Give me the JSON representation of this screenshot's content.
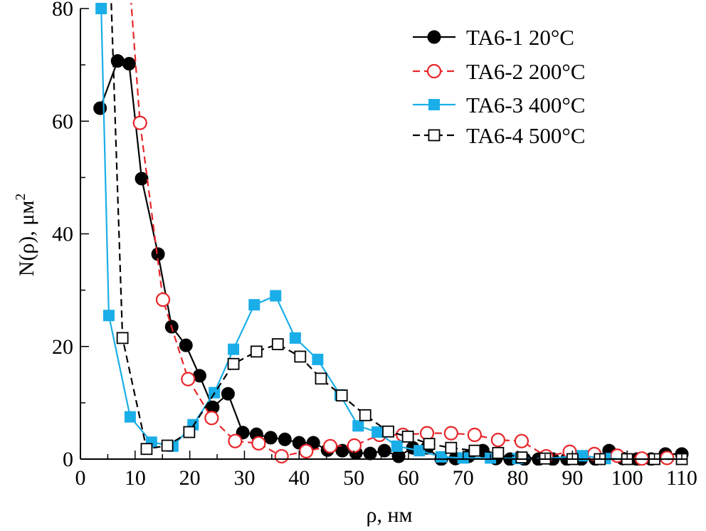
{
  "chart_data": {
    "type": "line",
    "title": "",
    "xlabel": "ρ, нм",
    "ylabel": "N(ρ), μм",
    "ylabel_sup": "2",
    "xlim": [
      0,
      110
    ],
    "ylim": [
      0,
      80
    ],
    "xticks": [
      0,
      10,
      20,
      30,
      40,
      50,
      60,
      70,
      80,
      90,
      100,
      110
    ],
    "yticks": [
      0,
      20,
      40,
      60,
      80
    ],
    "grid": false,
    "legend_position": "top-right",
    "series": [
      {
        "name": "TA6-1 20°C",
        "color": "#000000",
        "marker": "filled-circle",
        "dash": "solid",
        "x": [
          3.6,
          6.8,
          8.9,
          11.2,
          14.2,
          16.7,
          19.3,
          21.8,
          24.2,
          27.0,
          29.7,
          32.2,
          34.8,
          37.4,
          40.0,
          42.6,
          45.2,
          47.9,
          50.4,
          53.0,
          55.6,
          58.2,
          60.8,
          63.4,
          66.0,
          68.6,
          71.0,
          73.6,
          76.0,
          78.6,
          81.2,
          83.8,
          86.4,
          89.0,
          91.6,
          94.2,
          96.7,
          99.2,
          101.8,
          104.4,
          107.0,
          110.0
        ],
        "y": [
          62.3,
          70.7,
          70.2,
          49.8,
          36.4,
          23.5,
          20.2,
          14.8,
          9.2,
          11.6,
          4.7,
          4.4,
          3.8,
          3.5,
          2.9,
          2.9,
          1.6,
          1.5,
          1.1,
          1.0,
          1.5,
          0.5,
          2.0,
          2.0,
          0.0,
          0.1,
          0.5,
          1.5,
          0.1,
          0.0,
          0.0,
          0.0,
          0.0,
          0.0,
          0.0,
          0.0,
          1.5,
          0.1,
          0.0,
          0.0,
          0.9,
          0.9
        ]
      },
      {
        "name": "TA6-2 200°C",
        "color": "#e8262a",
        "marker": "open-circle",
        "dash": "dashed",
        "x": [
          8.6,
          10.9,
          15.1,
          19.7,
          24.0,
          28.3,
          32.6,
          36.8,
          41.3,
          45.7,
          50.1,
          54.7,
          59.0,
          63.4,
          67.8,
          72.1,
          76.4,
          80.7,
          85.2,
          89.5,
          94.0,
          98.2,
          102.7,
          107.3
        ],
        "y": [
          90,
          59.7,
          28.3,
          14.2,
          7.3,
          3.2,
          2.8,
          0.5,
          1.4,
          2.3,
          2.4,
          4.3,
          4.3,
          4.6,
          4.6,
          4.3,
          3.4,
          3.2,
          0.5,
          1.3,
          0.9,
          0.6,
          0.1,
          0.2
        ]
      },
      {
        "name": "TA6-3 400°C",
        "color": "#1aaee8",
        "marker": "filled-square",
        "dash": "solid",
        "x": [
          3.8,
          5.2,
          9.1,
          13.0,
          16.9,
          20.6,
          24.5,
          28.0,
          31.8,
          35.7,
          39.3,
          43.4,
          47.5,
          50.8,
          54.3,
          57.9,
          62.0,
          66.0,
          70.0,
          75.0,
          80.0,
          85.0,
          91.8,
          96.0,
          100.0,
          105.0,
          110.0
        ],
        "y": [
          80,
          25.5,
          7.5,
          3.0,
          2.3,
          6.1,
          11.8,
          19.5,
          27.4,
          29.0,
          21.5,
          17.7,
          11.4,
          5.9,
          4.8,
          2.3,
          1.5,
          0.4,
          0.2,
          0.2,
          0.1,
          0.1,
          0.6,
          0.1,
          0.0,
          0.0,
          0.0
        ]
      },
      {
        "name": "TA6-4 500°C",
        "color": "#000000",
        "marker": "open-square",
        "dash": "dashed",
        "x": [
          5.5,
          7.7,
          12.1,
          15.9,
          19.9,
          28.0,
          32.2,
          36.1,
          40.2,
          44.0,
          47.8,
          52.1,
          56.3,
          59.9,
          63.8,
          67.8,
          72.1,
          76.4,
          80.7,
          85.0,
          90.0,
          95.0,
          100.0,
          105.0,
          110.0
        ],
        "y": [
          85,
          21.5,
          1.8,
          2.4,
          4.8,
          16.9,
          19.1,
          20.4,
          18.2,
          14.3,
          11.3,
          7.8,
          4.9,
          4.0,
          2.7,
          2.0,
          1.5,
          1.1,
          0.3,
          0.1,
          0.0,
          0.0,
          0.0,
          0.0,
          0.0
        ]
      }
    ]
  }
}
